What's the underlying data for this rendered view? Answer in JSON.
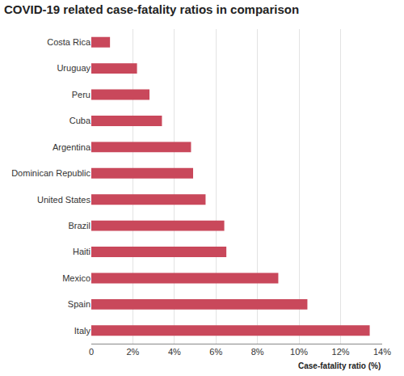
{
  "chart_data": {
    "type": "bar",
    "title": "COVID-19 related case-fatality ratios in comparison",
    "x_label": "Case-fatality ratio (%)",
    "orientation": "horizontal",
    "categories": [
      "Costa Rica",
      "Uruguay",
      "Peru",
      "Cuba",
      "Argentina",
      "Dominican Republic",
      "United States",
      "Brazil",
      "Haiti",
      "Mexico",
      "Spain",
      "Italy"
    ],
    "values": [
      0.9,
      2.2,
      2.8,
      3.4,
      4.8,
      4.9,
      5.5,
      6.4,
      6.5,
      9.0,
      10.4,
      13.4
    ],
    "color": "#c9485b",
    "xlim": [
      0,
      14
    ],
    "xticks": [
      0,
      {
        "value": 2,
        "label": "2%"
      },
      {
        "value": 4,
        "label": "4%"
      },
      {
        "value": 6,
        "label": "6%"
      },
      {
        "value": 8,
        "label": "8%"
      },
      {
        "value": 10,
        "label": "10%"
      },
      {
        "value": 12,
        "label": "12%"
      },
      {
        "value": 14,
        "label": "14%"
      }
    ],
    "grid": true
  }
}
